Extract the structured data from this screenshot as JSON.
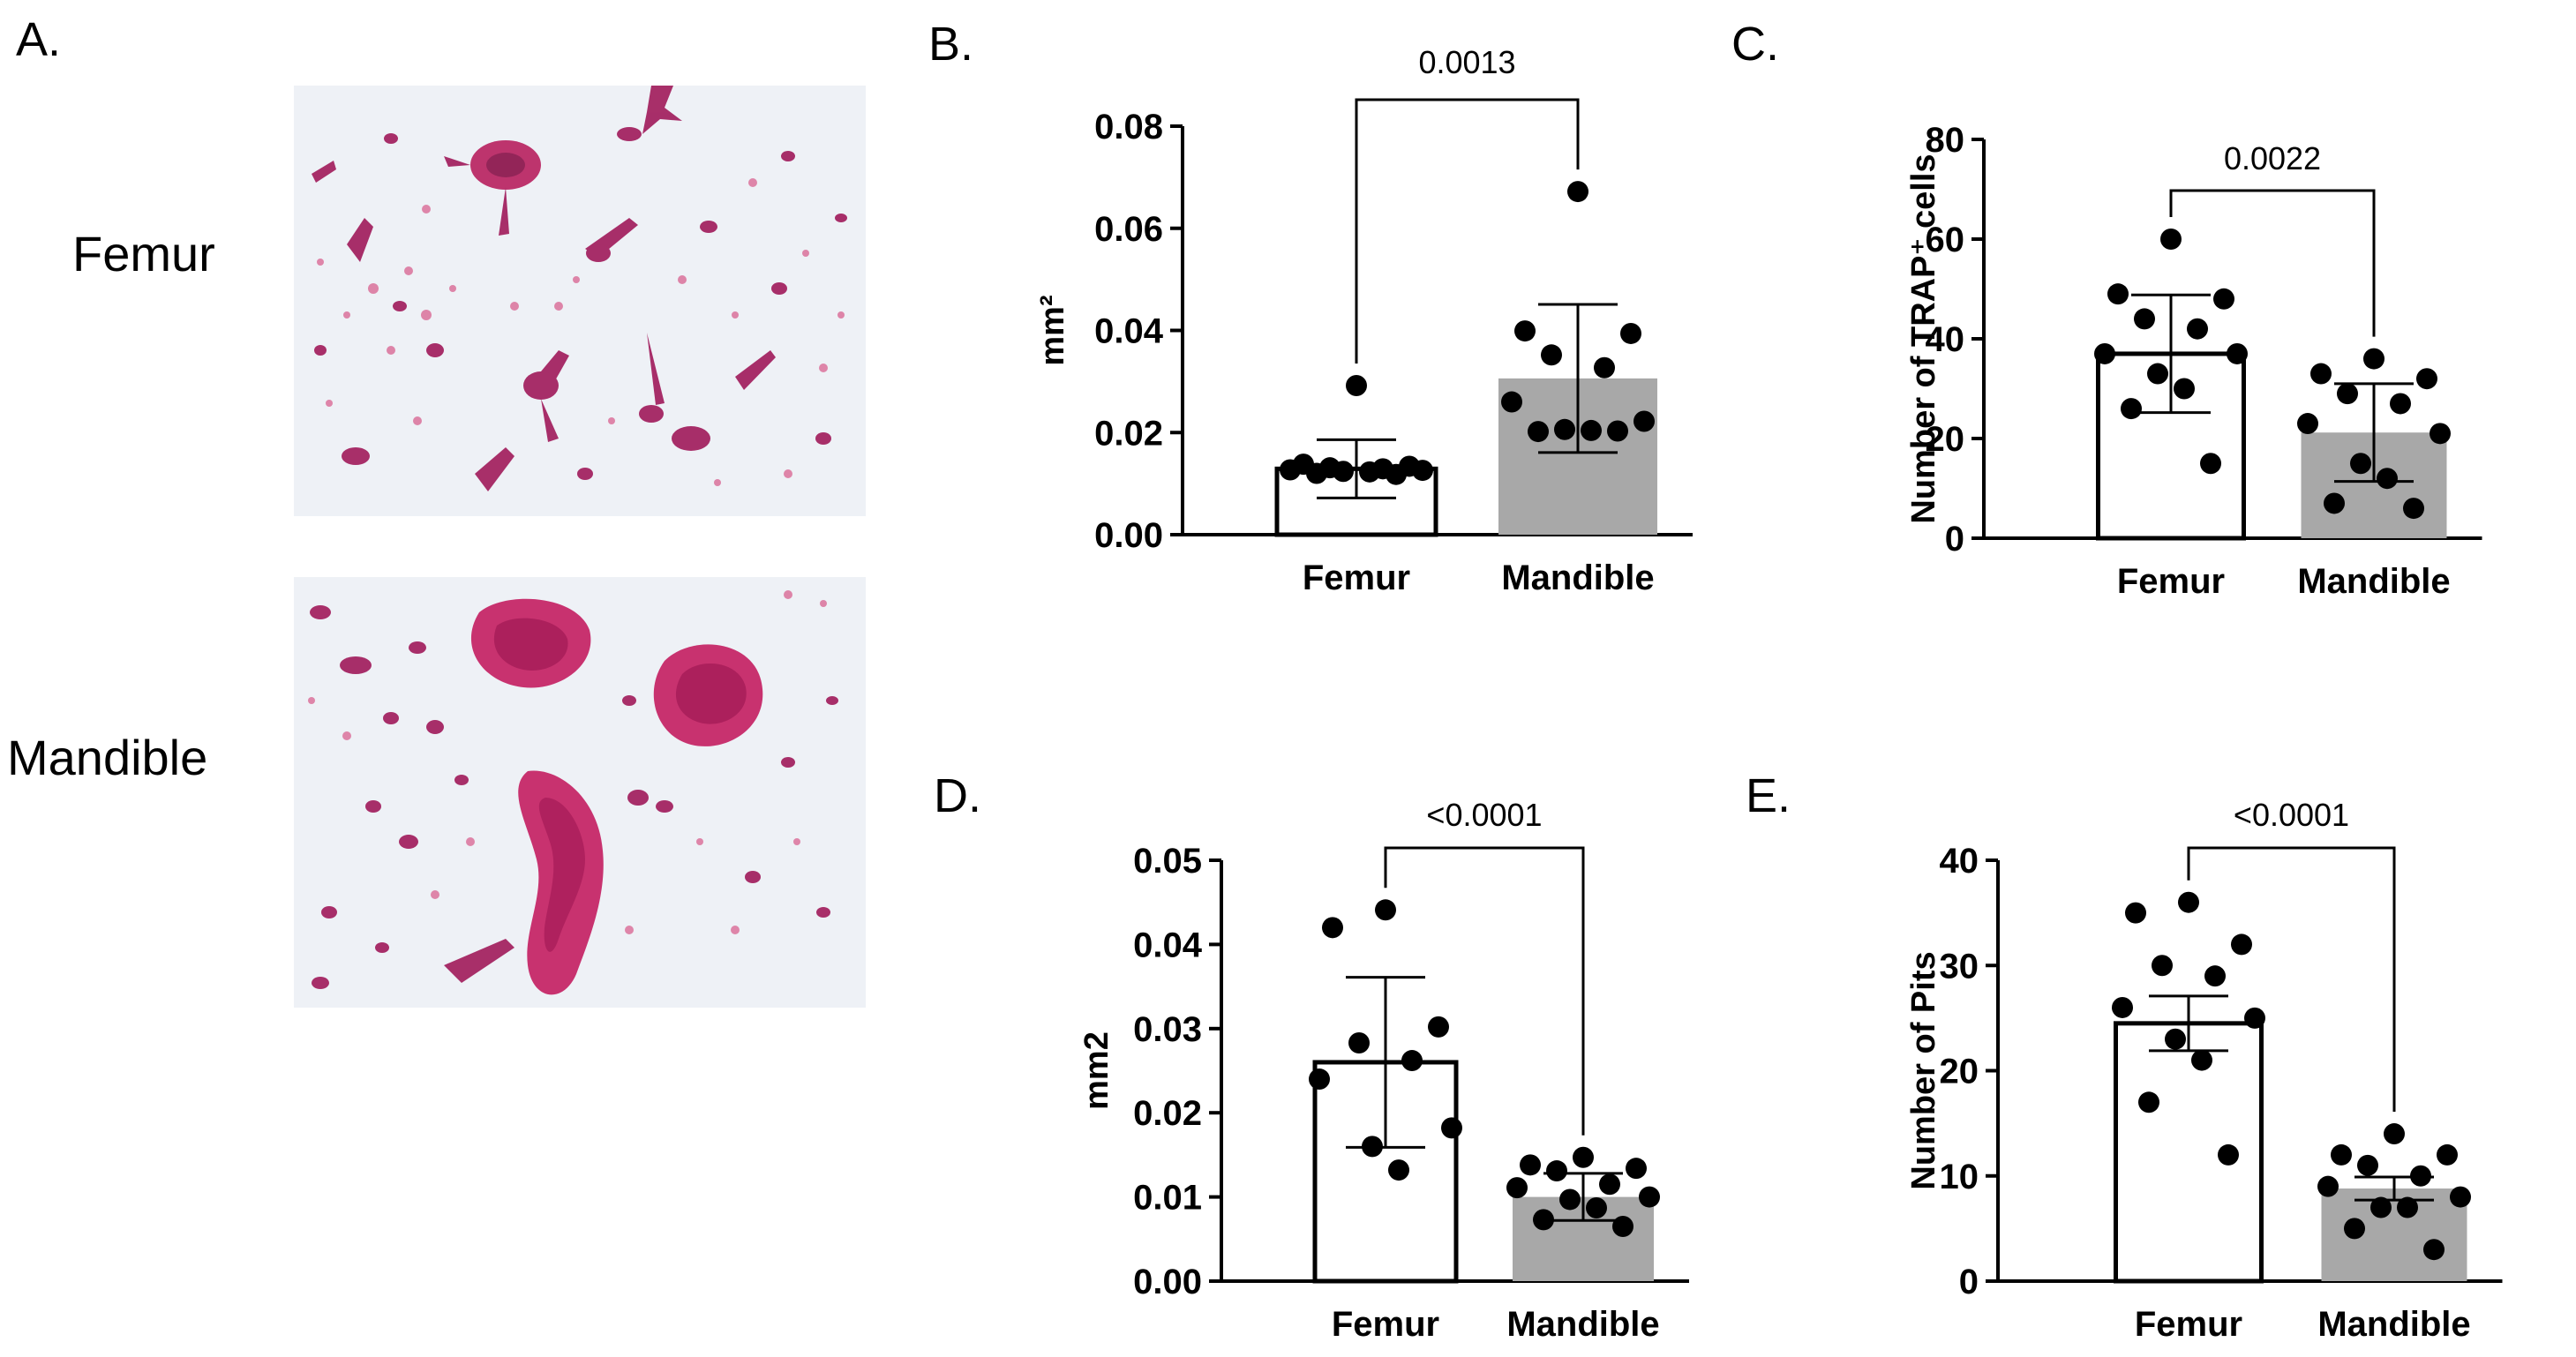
{
  "panel_a": {
    "letter": "A.",
    "rows": [
      {
        "label": "Femur"
      },
      {
        "label": "Mandible"
      }
    ]
  },
  "colors": {
    "femur_bar": "#ffffff",
    "mandible_bar": "#a8a8a8",
    "stain": "#a01a5a",
    "stain_light": "#d8608f",
    "background_slide": "#eef1f6"
  },
  "chart_data": [
    {
      "panel": "B.",
      "type": "bar",
      "categories": [
        "Femur",
        "Mandible"
      ],
      "values": [
        0.0129,
        0.0306
      ],
      "sd": [
        0.0057,
        0.0145
      ],
      "points": [
        [
          0.0292,
          0.0138,
          0.0134,
          0.0131,
          0.0129,
          0.0127,
          0.0126,
          0.0124,
          0.0123,
          0.012,
          0.0118
        ],
        [
          0.0672,
          0.0399,
          0.0394,
          0.0352,
          0.0327,
          0.026,
          0.0222,
          0.0206,
          0.0204,
          0.0202,
          0.0203
        ]
      ],
      "ylabel": "mm²",
      "ylim": [
        0,
        0.08
      ],
      "yticks": [
        "0.00",
        "0.02",
        "0.04",
        "0.06",
        "0.08"
      ],
      "pvalue": "0.0013"
    },
    {
      "panel": "C.",
      "type": "bar",
      "categories": [
        "Femur",
        "Mandible"
      ],
      "values": [
        37.0,
        21.2
      ],
      "sd": [
        11.8,
        9.8
      ],
      "points": [
        [
          60,
          49,
          48,
          44,
          42,
          37,
          37,
          33,
          30,
          26,
          15
        ],
        [
          36,
          33,
          32,
          29,
          27,
          23,
          21,
          15,
          12,
          7,
          6
        ]
      ],
      "ylabel": "Number of TRAP⁺ cells",
      "ylim": [
        0,
        80
      ],
      "yticks": [
        "0",
        "20",
        "40",
        "60",
        "80"
      ],
      "pvalue": "0.0022"
    },
    {
      "panel": "D.",
      "type": "bar",
      "categories": [
        "Femur",
        "Mandible"
      ],
      "values": [
        0.026,
        0.01
      ],
      "sd": [
        0.0101,
        0.0028
      ],
      "points": [
        [
          0.0441,
          0.042,
          0.0302,
          0.0283,
          0.0262,
          0.024,
          0.0182,
          0.016,
          0.0132
        ],
        [
          0.0147,
          0.0138,
          0.0134,
          0.0131,
          0.0115,
          0.0111,
          0.01,
          0.0097,
          0.0087,
          0.0073,
          0.0065
        ]
      ],
      "ylabel": "mm2",
      "ylim": [
        0,
        0.05
      ],
      "yticks": [
        "0.00",
        "0.01",
        "0.02",
        "0.03",
        "0.04",
        "0.05"
      ],
      "pvalue": "<0.0001"
    },
    {
      "panel": "E.",
      "type": "bar",
      "categories": [
        "Femur",
        "Mandible"
      ],
      "values": [
        24.5,
        8.8
      ],
      "sd": [
        2.6,
        1.1
      ],
      "points": [
        [
          36,
          35,
          32,
          30,
          29,
          26,
          25,
          23,
          21,
          17,
          12
        ],
        [
          14,
          12,
          12,
          11,
          10,
          9,
          8,
          7,
          7,
          5,
          3
        ]
      ],
      "ylabel": "Number of Pits",
      "ylim": [
        0,
        40
      ],
      "yticks": [
        "0",
        "10",
        "20",
        "30",
        "40"
      ],
      "pvalue": "<0.0001"
    }
  ]
}
